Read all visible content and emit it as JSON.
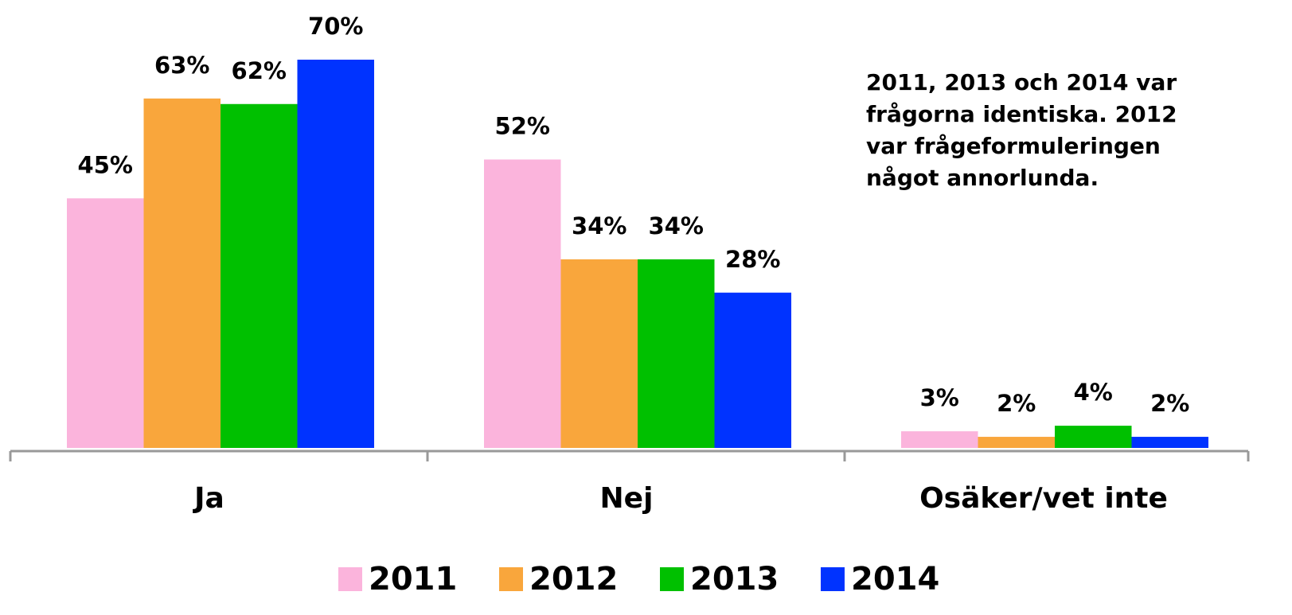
{
  "chart_data": {
    "type": "bar",
    "categories": [
      "Ja",
      "Nej",
      "Osäker/vet inte"
    ],
    "series": [
      {
        "name": "2011",
        "color": "#fbb4dc",
        "values": [
          45,
          52,
          3
        ],
        "value_labels": [
          "45%",
          "52%",
          "3%"
        ]
      },
      {
        "name": "2012",
        "color": "#f9a63c",
        "values": [
          63,
          34,
          2
        ],
        "value_labels": [
          "63%",
          "34%",
          "2%"
        ]
      },
      {
        "name": "2013",
        "color": "#00c000",
        "values": [
          62,
          34,
          4
        ],
        "value_labels": [
          "62%",
          "34%",
          "4%"
        ]
      },
      {
        "name": "2014",
        "color": "#0033ff",
        "values": [
          70,
          28,
          2
        ],
        "value_labels": [
          "70%",
          "28%",
          "2%"
        ]
      }
    ],
    "annotation": [
      "2011, 2013 och 2014 var",
      "frågorna identiska. 2012",
      "var frågeformuleringen",
      "något annorlunda."
    ],
    "legend": "bottom"
  }
}
